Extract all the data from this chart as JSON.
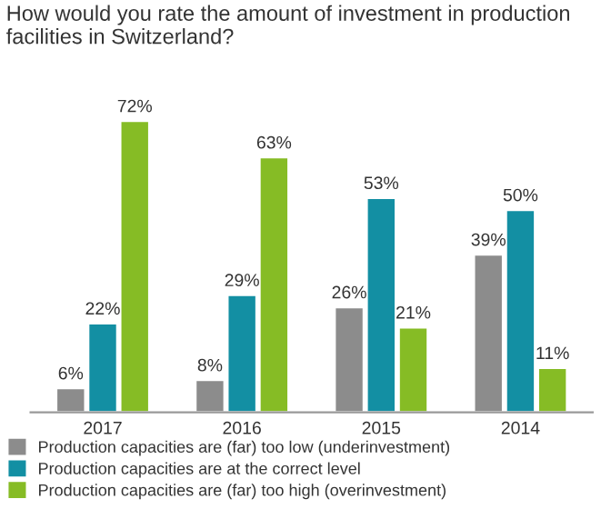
{
  "chart_data": {
    "type": "bar",
    "title": "How would you rate the amount of investment in production facilities in Switzerland?",
    "categories": [
      "2017",
      "2016",
      "2015",
      "2014"
    ],
    "series": [
      {
        "name": "Production capacities are (far) too low (underinvestment)",
        "color": "#8c8c8c",
        "values": [
          6,
          8,
          26,
          39
        ],
        "value_labels": [
          "6%",
          "8%",
          "26%",
          "39%"
        ]
      },
      {
        "name": "Production capacities are at the correct level",
        "color": "#138fa3",
        "values": [
          22,
          29,
          53,
          50
        ],
        "value_labels": [
          "22%",
          "29%",
          "53%",
          "50%"
        ]
      },
      {
        "name": "Production capacities are (far) too high (overinvestment)",
        "color": "#86bc25",
        "values": [
          72,
          63,
          21,
          11
        ],
        "value_labels": [
          "72%",
          "63%",
          "21%",
          "11%"
        ]
      }
    ],
    "legend": "bottom",
    "grid": false
  }
}
